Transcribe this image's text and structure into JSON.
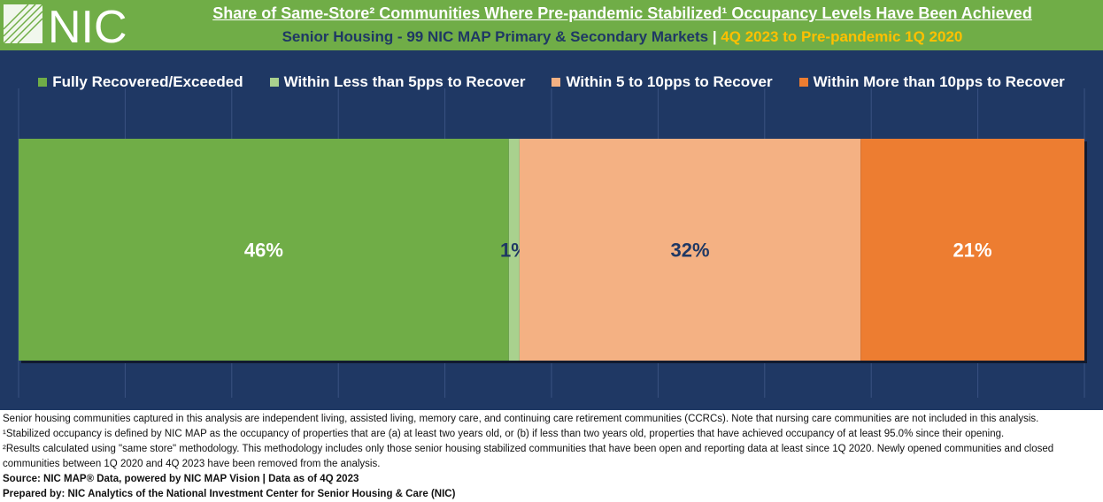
{
  "header": {
    "logo_text": "NIC",
    "title": "Share of Same-Store² Communities Where Pre-pandemic Stabilized¹ Occupancy Levels Have Been Achieved",
    "subtitle_main": "Senior Housing - 99 NIC MAP Primary & Secondary Markets",
    "subtitle_sep": " | ",
    "subtitle_period": "4Q 2023 to Pre-pandemic 1Q 2020"
  },
  "chart_data": {
    "type": "bar",
    "orientation": "horizontal-stacked-100",
    "categories": [
      ""
    ],
    "series": [
      {
        "name": "Fully Recovered/Exceeded",
        "values": [
          46
        ],
        "label": "46%",
        "color": "#70ad47",
        "label_color": "#ffffff"
      },
      {
        "name": "Within Less than 5pps to Recover",
        "values": [
          1
        ],
        "label": "1%",
        "color": "#a9d18e",
        "label_color": "#1f3864"
      },
      {
        "name": "Within 5 to 10pps to Recover",
        "values": [
          32
        ],
        "label": "32%",
        "color": "#f4b183",
        "label_color": "#1f3864"
      },
      {
        "name": "Within More than 10pps to Recover",
        "values": [
          21
        ],
        "label": "21%",
        "color": "#ed7d31",
        "label_color": "#ffffff"
      }
    ],
    "xlim": [
      0,
      100
    ],
    "grid": true,
    "legend": "top",
    "background": "#1f3864"
  },
  "notes": {
    "line1": "Senior housing communities captured in this analysis are independent living, assisted living, memory care, and continuing care retirement communities (CCRCs). Note that nursing care communities are not included in this analysis.",
    "line2": "¹Stabilized occupancy is defined by NIC MAP as the occupancy of properties that are (a) at least two years old, or (b) if less than two years old, properties that have achieved occupancy of at least 95.0% since their opening.",
    "line3": "²Results calculated using \"same store\" methodology. This methodology includes only those senior housing stabilized communities that have been open and reporting data at least since 1Q 2020. Newly opened communities and closed communities between 1Q 2020 and 4Q 2023 have been removed from the analysis.",
    "source": "Source: NIC MAP® Data, powered by NIC MAP Vision | Data as of 4Q 2023",
    "prepared": "Prepared by: NIC Analytics of the National Investment Center for Senior Housing & Care (NIC)"
  }
}
